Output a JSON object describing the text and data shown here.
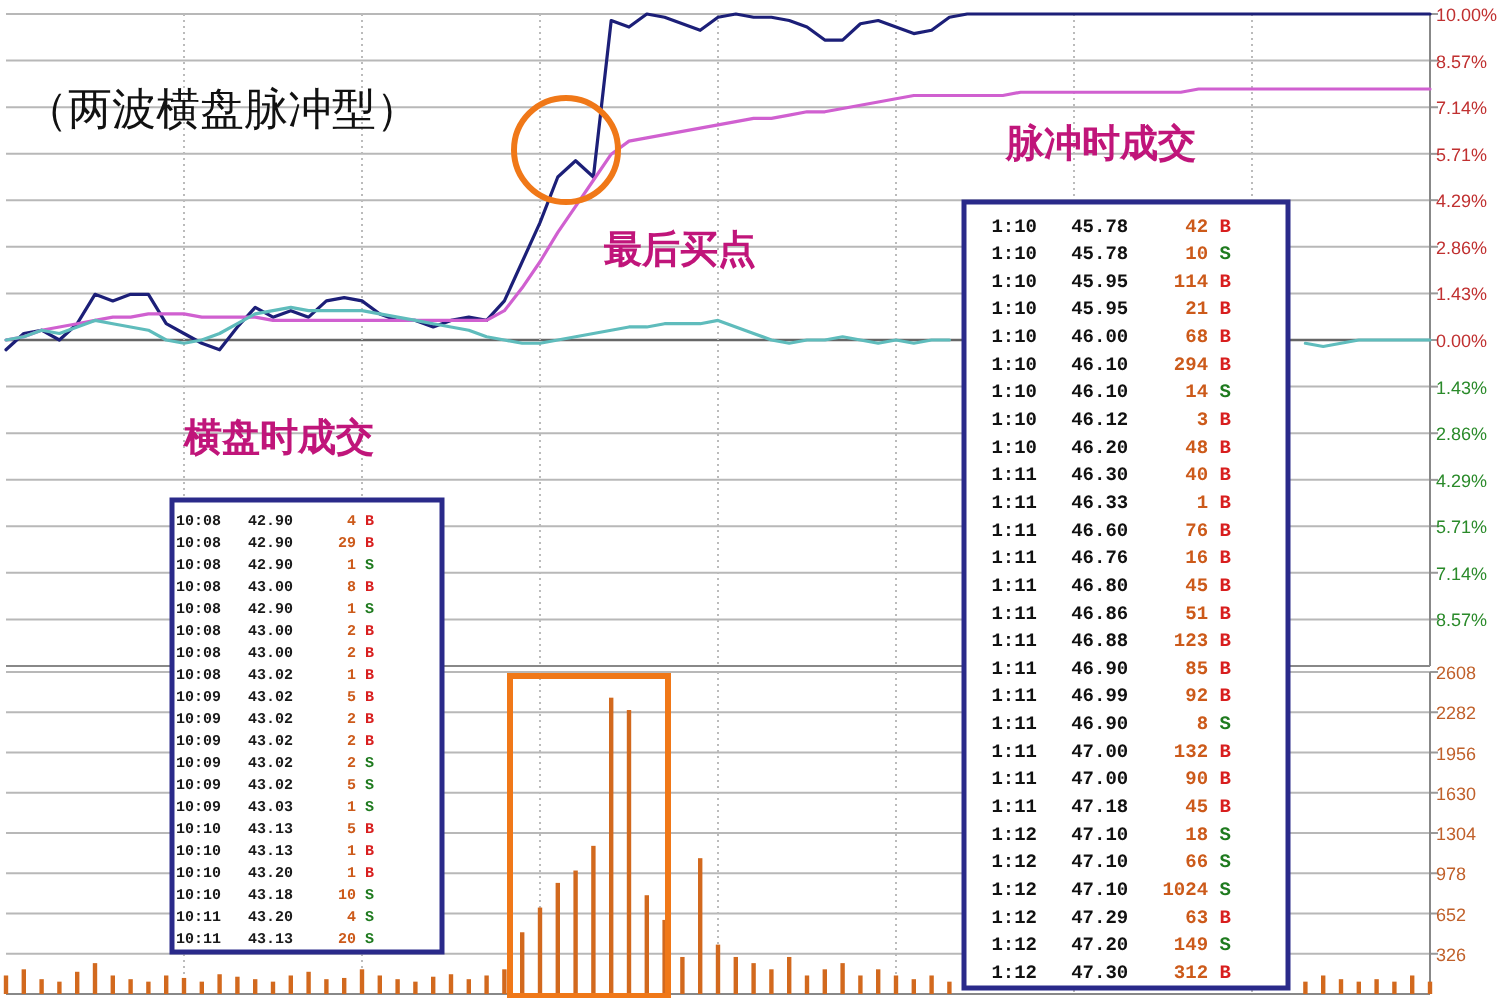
{
  "chart_data": [
    {
      "type": "line",
      "title": "（两波横盘脉冲型）",
      "annotations": [
        "最后买点"
      ],
      "categories": [
        null,
        null,
        null,
        null,
        null,
        null,
        null,
        null,
        null,
        null,
        null,
        null,
        null,
        null,
        null,
        null,
        null,
        null,
        null,
        null,
        null,
        null,
        null,
        null,
        null,
        null,
        null,
        null,
        null,
        null,
        null,
        null,
        null,
        null,
        null,
        null,
        null,
        null,
        null,
        null,
        null,
        null,
        null,
        null,
        null,
        null,
        null,
        null,
        null,
        null,
        null,
        null,
        null,
        null,
        null,
        null,
        null,
        null,
        null,
        null,
        null,
        null,
        null,
        null,
        null,
        null,
        null,
        null,
        null,
        null,
        null,
        null,
        null,
        null,
        null,
        null,
        null,
        null,
        null,
        null,
        null
      ],
      "series": [
        {
          "color": "#1c1f78",
          "values": [
            -0.3,
            0.2,
            0.3,
            0.0,
            0.5,
            1.4,
            1.2,
            1.4,
            1.4,
            0.5,
            0.2,
            -0.1,
            -0.3,
            0.4,
            1.0,
            0.7,
            0.9,
            0.7,
            1.2,
            1.3,
            1.2,
            0.8,
            0.6,
            0.6,
            0.4,
            0.6,
            0.7,
            0.6,
            1.2,
            2.4,
            3.6,
            5.0,
            5.5,
            5.0,
            9.8,
            9.6,
            10.0,
            9.9,
            9.7,
            9.5,
            9.9,
            10.0,
            9.9,
            9.9,
            9.8,
            9.6,
            9.2,
            9.2,
            9.7,
            9.8,
            9.6,
            9.4,
            9.5,
            9.9,
            10.0,
            10.0,
            10.0,
            10.0,
            10.0,
            10.0,
            10.0,
            10.0,
            10.0,
            10.0,
            10.0,
            10.0,
            10.0,
            10.0,
            10.0,
            10.0,
            10.0,
            10.0,
            10.0,
            10.0,
            10.0,
            10.0,
            10.0,
            10.0,
            10.0,
            10.0,
            10.0
          ]
        },
        {
          "color": "#d060d0",
          "values": [
            0.0,
            0.1,
            0.3,
            0.4,
            0.5,
            0.6,
            0.7,
            0.7,
            0.8,
            0.8,
            0.8,
            0.7,
            0.7,
            0.7,
            0.7,
            0.6,
            0.6,
            0.6,
            0.6,
            0.6,
            0.6,
            0.6,
            0.6,
            0.6,
            0.6,
            0.6,
            0.6,
            0.6,
            0.9,
            1.6,
            2.4,
            3.3,
            4.1,
            4.9,
            5.7,
            6.1,
            6.2,
            6.3,
            6.4,
            6.5,
            6.6,
            6.7,
            6.8,
            6.8,
            6.9,
            7.0,
            7.0,
            7.1,
            7.2,
            7.3,
            7.4,
            7.5,
            7.5,
            7.5,
            7.5,
            7.5,
            7.5,
            7.6,
            7.6,
            7.6,
            7.6,
            7.6,
            7.6,
            7.6,
            7.6,
            7.6,
            7.6,
            7.7,
            7.7,
            7.7,
            7.7,
            7.7,
            7.7,
            7.7,
            7.7,
            7.7,
            7.7,
            7.7,
            7.7,
            7.7,
            7.7
          ]
        },
        {
          "color": "#5fbcbc",
          "values": [
            0.0,
            0.1,
            0.3,
            0.2,
            0.4,
            0.6,
            0.5,
            0.4,
            0.3,
            0.0,
            -0.1,
            0.0,
            0.2,
            0.5,
            0.8,
            0.9,
            1.0,
            0.9,
            0.9,
            0.9,
            0.9,
            0.8,
            0.7,
            0.6,
            0.5,
            0.4,
            0.3,
            0.1,
            0.0,
            -0.1,
            -0.1,
            0.0,
            0.1,
            0.2,
            0.3,
            0.4,
            0.4,
            0.5,
            0.5,
            0.5,
            0.6,
            0.4,
            0.2,
            0.0,
            -0.1,
            0.0,
            0.0,
            0.1,
            0.0,
            -0.1,
            0.0,
            -0.1,
            0.0,
            0.0,
            null,
            null,
            null,
            null,
            null,
            null,
            null,
            null,
            null,
            null,
            null,
            null,
            null,
            null,
            null,
            null,
            null,
            null,
            null,
            -0.1,
            -0.2,
            -0.1,
            0.0,
            0.0,
            0.0,
            0.0,
            0.0
          ]
        }
      ],
      "ylim": [
        -10,
        10
      ],
      "yticks": [
        {
          "value": 10,
          "label": "10.00%"
        },
        {
          "value": 8.57,
          "label": "8.57%"
        },
        {
          "value": 7.14,
          "label": "7.14%"
        },
        {
          "value": 5.71,
          "label": "5.71%"
        },
        {
          "value": 4.29,
          "label": "4.29%"
        },
        {
          "value": 2.86,
          "label": "2.86%"
        },
        {
          "value": 1.43,
          "label": "1.43%"
        },
        {
          "value": 0,
          "label": "0.00%"
        },
        {
          "value": -1.43,
          "label": "1.43%"
        },
        {
          "value": -2.86,
          "label": "2.86%"
        },
        {
          "value": -4.29,
          "label": "4.29%"
        },
        {
          "value": -5.71,
          "label": "5.71%"
        },
        {
          "value": -7.14,
          "label": "7.14%"
        },
        {
          "value": -8.57,
          "label": "8.57%"
        }
      ],
      "grid": true,
      "tick_labels": "y"
    },
    {
      "type": "bar",
      "color": "#d2691e",
      "categories": [
        null,
        null,
        null,
        null,
        null,
        null,
        null,
        null,
        null,
        null,
        null,
        null,
        null,
        null,
        null,
        null,
        null,
        null,
        null,
        null,
        null,
        null,
        null,
        null,
        null,
        null,
        null,
        null,
        null,
        null,
        null,
        null,
        null,
        null,
        null,
        null,
        null,
        null,
        null,
        null,
        null,
        null,
        null,
        null,
        null,
        null,
        null,
        null,
        null,
        null,
        null,
        null,
        null,
        null,
        null,
        null,
        null,
        null,
        null,
        null,
        null,
        null,
        null,
        null,
        null,
        null,
        null,
        null,
        null,
        null,
        null,
        null,
        null,
        null,
        null,
        null,
        null,
        null,
        null,
        null,
        null
      ],
      "values": [
        150,
        200,
        120,
        100,
        180,
        250,
        150,
        120,
        100,
        150,
        130,
        100,
        160,
        140,
        120,
        100,
        150,
        180,
        120,
        130,
        200,
        150,
        120,
        100,
        140,
        160,
        120,
        150,
        200,
        500,
        700,
        900,
        1000,
        1200,
        2400,
        2300,
        800,
        600,
        300,
        1100,
        400,
        300,
        250,
        200,
        300,
        150,
        200,
        250,
        150,
        200,
        150,
        120,
        150,
        100,
        null,
        null,
        null,
        null,
        null,
        null,
        null,
        null,
        null,
        null,
        null,
        null,
        null,
        null,
        null,
        null,
        null,
        null,
        null,
        100,
        150,
        120,
        100,
        120,
        100,
        150,
        100
      ],
      "ylim": [
        0,
        2608
      ],
      "yticks": [
        326,
        652,
        978,
        1304,
        1630,
        1956,
        2282,
        2608
      ],
      "grid": true,
      "tick_labels": "y"
    },
    {
      "type": "other",
      "title": "横盘时成交",
      "annotations": [
        "10:08 42.90 4 B",
        "10:08 42.90 29 B",
        "10:08 42.90 1 S",
        "10:08 43.00 8 B",
        "10:08 42.90 1 S",
        "10:08 43.00 2 B",
        "10:08 43.00 2 B",
        "10:08 43.02 1 B",
        "10:09 43.02 5 B",
        "10:09 43.02 2 B",
        "10:09 43.02 2 B",
        "10:09 43.02 2 S",
        "10:09 43.02 5 S",
        "10:09 43.03 1 S",
        "10:10 43.13 5 B",
        "10:10 43.13 1 B",
        "10:10 43.20 1 B",
        "10:10 43.18 10 S",
        "10:11 43.20 4 S",
        "10:11 43.13 20 S"
      ]
    },
    {
      "type": "other",
      "title": "脉冲时成交",
      "annotations": [
        "1:10 45.78 42 B",
        "1:10 45.78 10 S",
        "1:10 45.95 114 B",
        "1:10 45.95 21 B",
        "1:10 46.00 68 B",
        "1:10 46.10 294 B",
        "1:10 46.10 14 S",
        "1:10 46.12 3 B",
        "1:10 46.20 48 B",
        "1:11 46.30 40 B",
        "1:11 46.33 1 B",
        "1:11 46.60 76 B",
        "1:11 46.76 16 B",
        "1:11 46.80 45 B",
        "1:11 46.86 51 B",
        "1:11 46.88 123 B",
        "1:11 46.90 85 B",
        "1:11 46.99 92 B",
        "1:11 46.90 8 S",
        "1:11 47.00 132 B",
        "1:11 47.00 90 B",
        "1:11 47.18 45 B",
        "1:12 47.10 18 S",
        "1:12 47.10 66 S",
        "1:12 47.10 1024 S",
        "1:12 47.29 63 B",
        "1:12 47.20 149 S",
        "1:12 47.30 312 B"
      ]
    }
  ]
}
